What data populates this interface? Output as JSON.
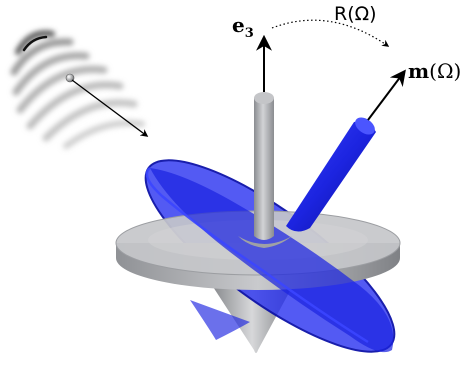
{
  "labels": {
    "e3": {
      "main": "e",
      "sub": "3"
    },
    "m": {
      "main": "m",
      "arg": "(Ω)"
    },
    "rotation": "R(Ω)"
  },
  "colors": {
    "gray_top": "#a7a9ad",
    "gray_dark": "#8b8d91",
    "gray_light": "#d6d7d9",
    "blue": "#1f27e0",
    "blue_light": "#5560ff",
    "blue_dark": "#0b0f9c"
  }
}
